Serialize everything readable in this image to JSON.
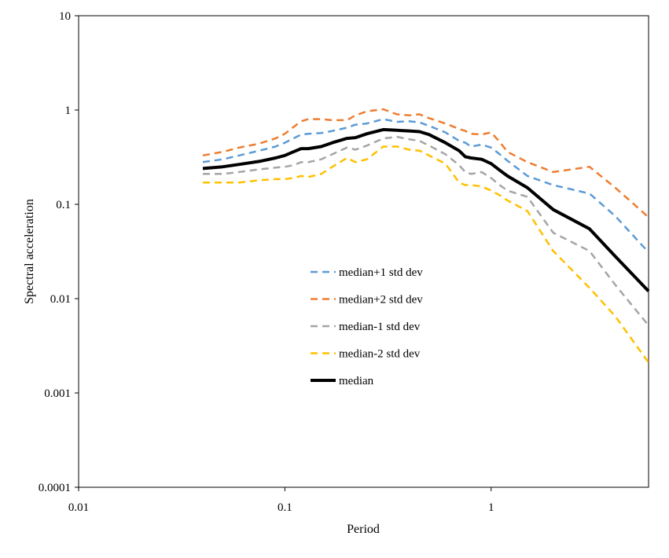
{
  "chart_data": {
    "type": "line",
    "title": "",
    "xlabel": "Period",
    "ylabel": "Spectral acceleration",
    "x_scale": "log",
    "y_scale": "log",
    "xlim": [
      0.01,
      5.8
    ],
    "ylim": [
      0.0001,
      10
    ],
    "x_ticks": [
      0.01,
      0.1,
      1
    ],
    "x_tick_labels": [
      "0.01",
      "0.1",
      "1"
    ],
    "y_ticks": [
      0.0001,
      0.001,
      0.01,
      0.1,
      1,
      10
    ],
    "y_tick_labels": [
      "0.0001",
      "0.001",
      "0.01",
      "0.1",
      "1",
      "10"
    ],
    "grid": false,
    "legend_position": "center",
    "x": [
      0.04,
      0.05,
      0.06,
      0.075,
      0.09,
      0.1,
      0.11,
      0.12,
      0.13,
      0.15,
      0.17,
      0.2,
      0.22,
      0.25,
      0.3,
      0.35,
      0.4,
      0.45,
      0.5,
      0.6,
      0.7,
      0.75,
      0.8,
      0.9,
      1.0,
      1.1,
      1.2,
      1.5,
      2.0,
      3.0,
      4.0,
      5.8
    ],
    "series": [
      {
        "name": "median+1 std dev",
        "color": "#5B9BD5",
        "dash": "dashed",
        "values": [
          0.28,
          0.3,
          0.33,
          0.37,
          0.41,
          0.45,
          0.5,
          0.55,
          0.56,
          0.57,
          0.6,
          0.65,
          0.7,
          0.72,
          0.8,
          0.75,
          0.76,
          0.74,
          0.68,
          0.58,
          0.47,
          0.45,
          0.41,
          0.43,
          0.4,
          0.34,
          0.29,
          0.2,
          0.16,
          0.13,
          0.075,
          0.031
        ]
      },
      {
        "name": "median+2 std dev",
        "color": "#ED7D31",
        "dash": "dashed",
        "values": [
          0.33,
          0.36,
          0.4,
          0.44,
          0.5,
          0.56,
          0.66,
          0.76,
          0.8,
          0.8,
          0.78,
          0.78,
          0.88,
          0.97,
          1.02,
          0.9,
          0.88,
          0.9,
          0.82,
          0.72,
          0.63,
          0.6,
          0.56,
          0.55,
          0.58,
          0.46,
          0.36,
          0.28,
          0.22,
          0.25,
          0.15,
          0.073
        ]
      },
      {
        "name": "median-1 std dev",
        "color": "#A5A5A5",
        "dash": "dashed",
        "values": [
          0.21,
          0.21,
          0.22,
          0.235,
          0.245,
          0.25,
          0.26,
          0.28,
          0.28,
          0.3,
          0.34,
          0.4,
          0.38,
          0.42,
          0.5,
          0.52,
          0.49,
          0.47,
          0.42,
          0.34,
          0.26,
          0.22,
          0.21,
          0.22,
          0.19,
          0.16,
          0.14,
          0.12,
          0.05,
          0.032,
          0.014,
          0.0052
        ]
      },
      {
        "name": "median-2 std dev",
        "color": "#FFC000",
        "dash": "dashed",
        "values": [
          0.17,
          0.17,
          0.17,
          0.18,
          0.185,
          0.185,
          0.19,
          0.2,
          0.195,
          0.21,
          0.25,
          0.31,
          0.28,
          0.3,
          0.41,
          0.41,
          0.38,
          0.37,
          0.33,
          0.27,
          0.17,
          0.16,
          0.16,
          0.155,
          0.14,
          0.125,
          0.11,
          0.085,
          0.032,
          0.013,
          0.0065,
          0.0021
        ]
      },
      {
        "name": "median",
        "color": "#000000",
        "dash": "solid",
        "values": [
          0.24,
          0.25,
          0.265,
          0.285,
          0.31,
          0.33,
          0.36,
          0.39,
          0.39,
          0.41,
          0.45,
          0.5,
          0.51,
          0.56,
          0.62,
          0.61,
          0.6,
          0.59,
          0.55,
          0.45,
          0.37,
          0.32,
          0.31,
          0.3,
          0.27,
          0.23,
          0.2,
          0.15,
          0.088,
          0.055,
          0.028,
          0.012
        ]
      }
    ]
  }
}
